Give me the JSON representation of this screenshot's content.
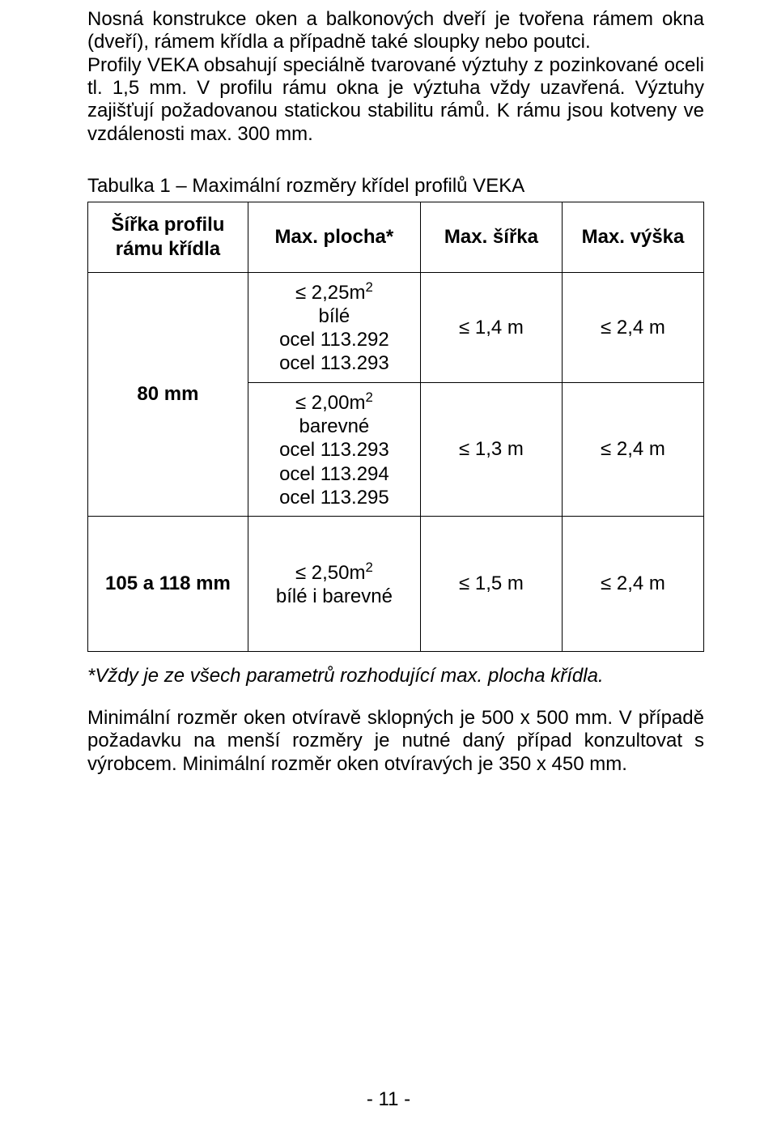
{
  "paragraph1": "Nosná konstrukce oken a balkonových dveří je tvořena rámem okna (dveří), rámem křídla a případně také sloupky nebo poutci.",
  "paragraph2": "Profily VEKA obsahují speciálně tvarované výztuhy z pozinkované oceli tl. 1,5 mm. V profilu rámu okna je výztuha vždy uzavřená. Výztuhy zajišťují požadovanou statickou stabilitu rámů. K rámu jsou kotveny ve vzdálenosti max. 300 mm.",
  "tableCaption": "Tabulka 1 – Maximální rozměry křídel profilů VEKA",
  "headers": {
    "h1": "Šířka profilu rámu křídla",
    "h2": "Max. plocha*",
    "h3": "Max. šířka",
    "h4": "Max. výška"
  },
  "rows": {
    "r1c1": "80 mm",
    "r1a_area": "≤ 2,25m",
    "r1a_l1": "bílé",
    "r1a_l2": "ocel 113.292",
    "r1a_l3": "ocel 113.293",
    "r1a_sirka": "≤ 1,4 m",
    "r1a_vyska": "≤ 2,4 m",
    "r1b_area": "≤ 2,00m",
    "r1b_l1": "barevné",
    "r1b_l2": "ocel 113.293",
    "r1b_l3": "ocel 113.294",
    "r1b_l4": "ocel 113.295",
    "r1b_sirka": "≤ 1,3 m",
    "r1b_vyska": "≤ 2,4 m",
    "r2c1": "105 a 118 mm",
    "r2_area": "≤ 2,50m",
    "r2_l1": "bílé i barevné",
    "r2_sirka": "≤ 1,5 m",
    "r2_vyska": "≤ 2,4 m"
  },
  "footnote": "*Vždy je ze všech parametrů rozhodující max. plocha křídla.",
  "paragraph3": "Minimální rozměr oken otvíravě sklopných je 500 x 500 mm. V případě požadavku na menší rozměry je nutné daný případ konzultovat s výrobcem. Minimální rozměr oken otvíravých je 350 x 450 mm.",
  "pageNumber": "- 11 -"
}
